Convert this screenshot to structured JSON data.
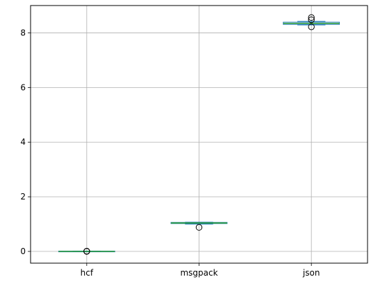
{
  "chart_data": {
    "type": "box",
    "title": "",
    "xlabel": "",
    "ylabel": "",
    "grid": true,
    "ylim": [
      -0.43,
      9.0
    ],
    "yticks": [
      0,
      2,
      4,
      6,
      8
    ],
    "ytick_labels": [
      "0",
      "2",
      "4",
      "6",
      "8"
    ],
    "categories": [
      "hcf",
      "msgpack",
      "json"
    ],
    "boxes": [
      {
        "name": "hcf",
        "whisker_low": 0.0,
        "q1": 0.0,
        "median": 0.0,
        "q3": 0.01,
        "whisker_high": 0.01,
        "outliers": [
          0.0,
          0.01
        ]
      },
      {
        "name": "msgpack",
        "whisker_low": 1.0,
        "q1": 1.02,
        "median": 1.04,
        "q3": 1.06,
        "whisker_high": 1.07,
        "outliers": [
          0.88
        ]
      },
      {
        "name": "json",
        "whisker_low": 8.29,
        "q1": 8.31,
        "median": 8.35,
        "q3": 8.39,
        "whisker_high": 8.42,
        "outliers": [
          8.22,
          8.48,
          8.56
        ]
      }
    ],
    "colors": {
      "box": "#1f77b4",
      "median": "#2ca02c",
      "outlier": "#000000",
      "grid": "#b0b0b0"
    }
  }
}
